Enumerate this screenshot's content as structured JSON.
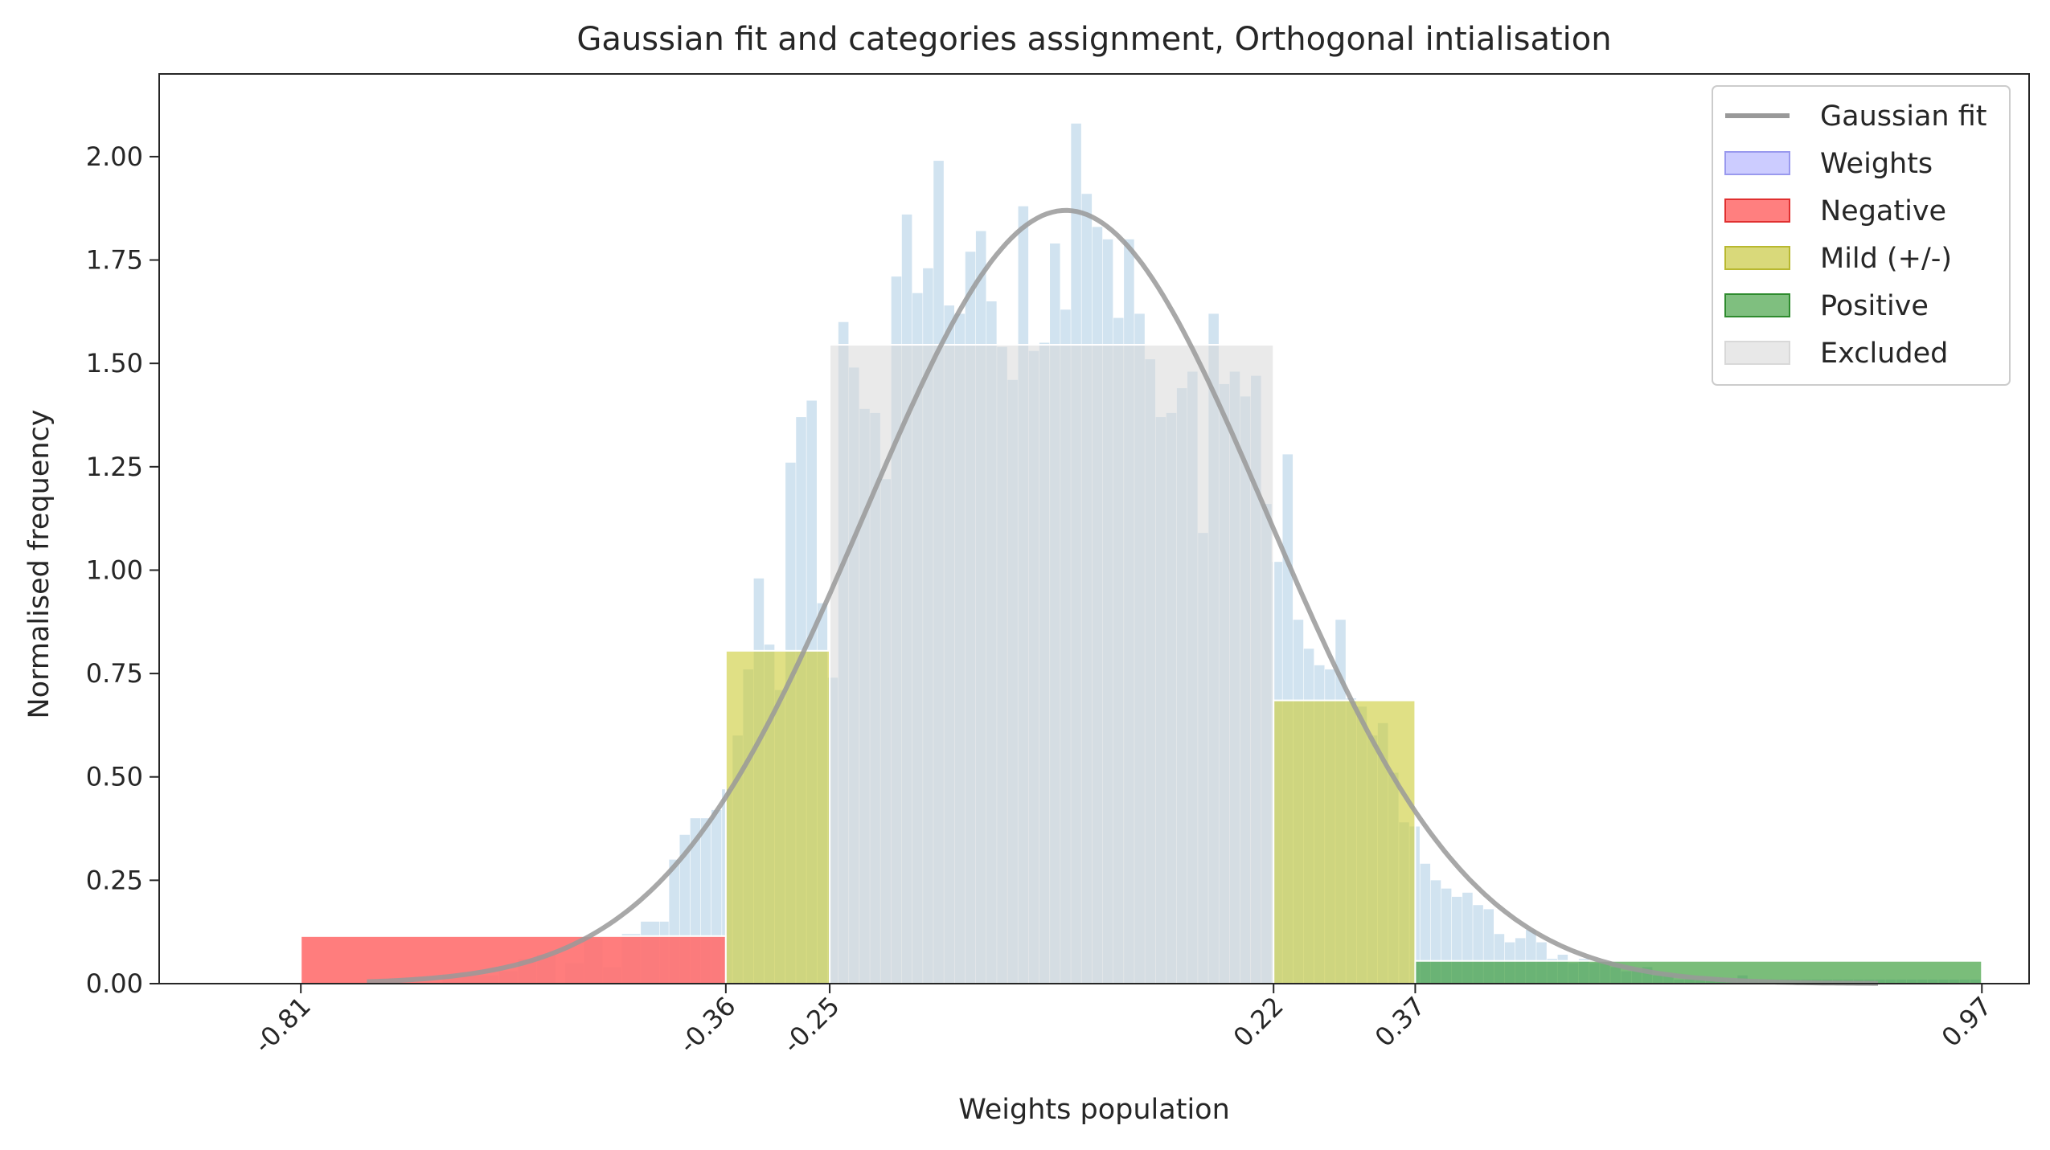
{
  "chart_data": {
    "type": "bar",
    "title": "Gaussian fit and categories assignment, Orthogonal intialisation",
    "xlabel": "Weights population",
    "ylabel": "Normalised frequency",
    "xlim": [
      -0.96,
      1.02
    ],
    "ylim": [
      0,
      2.2
    ],
    "yticks": [
      0.0,
      0.25,
      0.5,
      0.75,
      1.0,
      1.25,
      1.5,
      1.75,
      2.0
    ],
    "xticks": [
      -0.81,
      -0.36,
      -0.25,
      0.22,
      0.37,
      0.97
    ],
    "xtick_labels": [
      "-0.81",
      "-0.36",
      "-0.25",
      "0.22",
      "0.37",
      "0.97"
    ],
    "legend_position": "top-right",
    "legend": [
      {
        "label": "Gaussian fit",
        "kind": "line",
        "color": "#999999"
      },
      {
        "label": "Weights",
        "kind": "patch",
        "color": "#ccccff",
        "edge": "#9999ee"
      },
      {
        "label": "Negative",
        "kind": "patch",
        "color": "#ff7f7f",
        "edge": "#e03030"
      },
      {
        "label": "Mild (+/-)",
        "kind": "patch",
        "color": "#d9d97a",
        "edge": "#b8b830"
      },
      {
        "label": "Positive",
        "kind": "patch",
        "color": "#7fbf7f",
        "edge": "#2e8b2e"
      },
      {
        "label": "Excluded",
        "kind": "patch",
        "color": "#e8e8e8",
        "edge": "#d8d8d8"
      }
    ],
    "gaussian": {
      "mu": 0.0,
      "sigma": 0.2135,
      "peak": 1.87,
      "x_range": [
        -0.74,
        0.86
      ],
      "color": "#999999"
    },
    "histogram": {
      "bin_start": -0.42,
      "bin_width": 0.0112,
      "color": "#c6dcec",
      "values": [
        0.3,
        0.36,
        0.4,
        0.4,
        0.42,
        0.47,
        0.6,
        0.76,
        0.98,
        0.82,
        0.71,
        1.26,
        1.37,
        1.41,
        0.92,
        0.74,
        1.6,
        1.49,
        1.39,
        1.38,
        1.22,
        1.71,
        1.86,
        1.67,
        1.73,
        1.99,
        1.64,
        1.62,
        1.77,
        1.82,
        1.65,
        1.54,
        1.46,
        1.88,
        1.53,
        1.55,
        1.79,
        1.63,
        2.08,
        1.91,
        1.83,
        1.8,
        1.61,
        1.8,
        1.62,
        1.51,
        1.37,
        1.38,
        1.44,
        1.48,
        1.09,
        1.62,
        1.45,
        1.48,
        1.42,
        1.47,
        1.16,
        1.02,
        1.28,
        0.88,
        0.81,
        0.77,
        0.76,
        0.88,
        0.69,
        0.67,
        0.6,
        0.63,
        0.51,
        0.39,
        0.38,
        0.29,
        0.25,
        0.23,
        0.21,
        0.22,
        0.19,
        0.18,
        0.12,
        0.1,
        0.11,
        0.13,
        0.1,
        0.06,
        0.07,
        0.05,
        0.06,
        0.05,
        0.05,
        0.04,
        0.03,
        0.03,
        0.04,
        0.02,
        0.02,
        0.01,
        0.01,
        0.01,
        0.01,
        0.01,
        0.01,
        0.02,
        0.01,
        0.01,
        0.01,
        0.01,
        0.01,
        0.01,
        0.01,
        0.01,
        0.01,
        0.01,
        0.01,
        0.01,
        0.01,
        0.01,
        0.01,
        0.01,
        0.01,
        0.01,
        0.01,
        0.01,
        0.01,
        0.01
      ],
      "left_tail": [
        {
          "x0": -0.53,
          "x1": -0.51,
          "y": 0.05
        },
        {
          "x0": -0.51,
          "x1": -0.49,
          "y": 0.11
        },
        {
          "x0": -0.49,
          "x1": -0.47,
          "y": 0.04
        },
        {
          "x0": -0.47,
          "x1": -0.45,
          "y": 0.12
        },
        {
          "x0": -0.45,
          "x1": -0.43,
          "y": 0.15
        },
        {
          "x0": -0.43,
          "x1": -0.42,
          "y": 0.15
        },
        {
          "x0": -0.6,
          "x1": -0.58,
          "y": 0.03
        },
        {
          "x0": -0.58,
          "x1": -0.56,
          "y": 0.06
        },
        {
          "x0": -0.56,
          "x1": -0.54,
          "y": 0.07
        },
        {
          "x0": -0.66,
          "x1": -0.64,
          "y": 0.02
        },
        {
          "x0": -0.64,
          "x1": -0.6,
          "y": 0.02
        }
      ]
    },
    "categories": [
      {
        "name": "Negative",
        "x0": -0.81,
        "x1": -0.36,
        "height": 0.115,
        "color": "#ff6f6f",
        "opacity": 0.9
      },
      {
        "name": "Mild (+/-)",
        "x0": -0.36,
        "x1": -0.25,
        "height": 0.805,
        "color": "#cccc33",
        "opacity": 0.6
      },
      {
        "name": "Excluded",
        "x0": -0.25,
        "x1": 0.22,
        "height": 1.545,
        "color": "#d9d9d9",
        "opacity": 0.55
      },
      {
        "name": "Mild (+/-)",
        "x0": 0.22,
        "x1": 0.37,
        "height": 0.685,
        "color": "#cccc33",
        "opacity": 0.6
      },
      {
        "name": "Positive",
        "x0": 0.37,
        "x1": 0.97,
        "height": 0.055,
        "color": "#339933",
        "opacity": 0.65
      }
    ]
  }
}
